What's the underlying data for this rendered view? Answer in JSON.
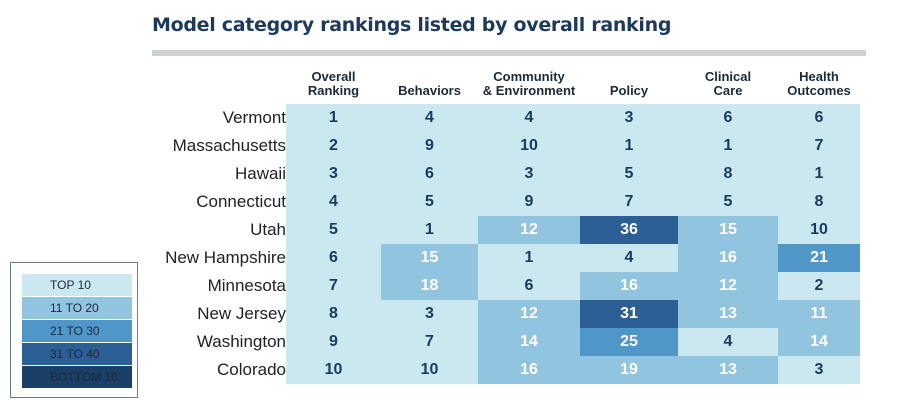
{
  "title": "Model category rankings listed by overall ranking",
  "chart_data": {
    "type": "table",
    "columns": [
      "Overall\nRanking",
      "Behaviors",
      "Community\n& Environment",
      "Policy",
      "Clinical\nCare",
      "Health\nOutcomes"
    ],
    "rows": [
      {
        "state": "Vermont",
        "values": [
          1,
          4,
          4,
          3,
          6,
          6
        ]
      },
      {
        "state": "Massachusetts",
        "values": [
          2,
          9,
          10,
          1,
          1,
          7
        ]
      },
      {
        "state": "Hawaii",
        "values": [
          3,
          6,
          3,
          5,
          8,
          1
        ]
      },
      {
        "state": "Connecticut",
        "values": [
          4,
          5,
          9,
          7,
          5,
          8
        ]
      },
      {
        "state": "Utah",
        "values": [
          5,
          1,
          12,
          36,
          15,
          10
        ]
      },
      {
        "state": "New Hampshire",
        "values": [
          6,
          15,
          1,
          4,
          16,
          21
        ]
      },
      {
        "state": "Minnesota",
        "values": [
          7,
          18,
          6,
          16,
          12,
          2
        ]
      },
      {
        "state": "New Jersey",
        "values": [
          8,
          3,
          12,
          31,
          13,
          11
        ]
      },
      {
        "state": "Washington",
        "values": [
          9,
          7,
          14,
          25,
          4,
          14
        ]
      },
      {
        "state": "Colorado",
        "values": [
          10,
          10,
          16,
          19,
          13,
          3
        ]
      }
    ],
    "legend": [
      {
        "label": "TOP 10",
        "color": "#cbe8f1",
        "text_color": "#1b3a5c"
      },
      {
        "label": "11 TO 20",
        "color": "#91c4df",
        "text_color": "#ffffff"
      },
      {
        "label": "21 TO 30",
        "color": "#4f97c9",
        "text_color": "#ffffff"
      },
      {
        "label": "31 TO 40",
        "color": "#2c5f95",
        "text_color": "#ffffff"
      },
      {
        "label": "BOTTOM 10",
        "color": "#1b3f66",
        "text_color": "#ffffff"
      }
    ]
  }
}
